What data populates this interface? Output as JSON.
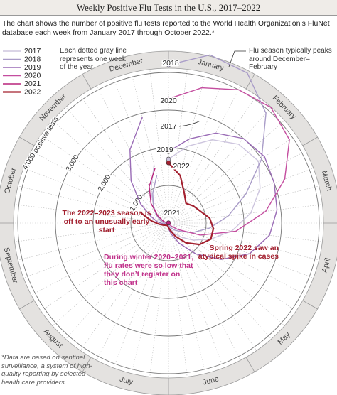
{
  "chart_data": {
    "type": "radial-line",
    "title": "Weekly Positive Flu Tests in the U.S., 2017–2022",
    "subtitle": "The chart shows the number of positive flu tests reported to the World Health Organization’s FluNet database each week from January 2017 through October 2022.*",
    "footnote": "*Data are based on sentinel surveillance, a system of high-quality reporting by selected health care providers.",
    "categories": [
      "January",
      "February",
      "March",
      "April",
      "May",
      "June",
      "July",
      "August",
      "September",
      "October",
      "November",
      "December"
    ],
    "x": [
      1,
      3,
      5,
      7,
      9,
      11,
      13,
      15,
      17,
      19,
      21,
      23,
      25,
      27,
      29,
      31,
      33,
      35,
      37,
      39,
      41,
      43,
      45,
      47,
      49,
      51
    ],
    "xlim": [
      1,
      53
    ],
    "rlim": [
      0,
      4000
    ],
    "rticks": [
      {
        "value": 1000,
        "label": "1,000"
      },
      {
        "value": 2000,
        "label": "2,000"
      },
      {
        "value": 3000,
        "label": "3,000"
      },
      {
        "value": 4000,
        "label": "4,000 positive tests"
      }
    ],
    "series": [
      {
        "name": "2017",
        "color": "#cdc5de",
        "values": [
          1700,
          2100,
          2500,
          2800,
          2900,
          2600,
          2200,
          1700,
          1200,
          800,
          500,
          300,
          150,
          80,
          50,
          40,
          40,
          40,
          50,
          60,
          100,
          200,
          350,
          600,
          1000,
          1600
        ]
      },
      {
        "name": "2018",
        "color": "#a99cc8",
        "values": [
          4200,
          4600,
          4500,
          3900,
          3000,
          2200,
          1600,
          1100,
          700,
          400,
          250,
          150,
          80,
          50,
          40,
          40,
          40,
          50,
          70,
          100,
          150,
          250,
          400,
          600,
          900,
          1300
        ]
      },
      {
        "name": "2019",
        "color": "#9a6cb6",
        "values": [
          1900,
          2300,
          2700,
          3000,
          3100,
          3000,
          2900,
          2700,
          2300,
          1700,
          1100,
          600,
          300,
          150,
          80,
          60,
          60,
          70,
          100,
          150,
          300,
          500,
          900,
          1500,
          2200,
          2900
        ]
      },
      {
        "name": "2020",
        "color": "#c44d9f",
        "values": [
          3300,
          3700,
          4000,
          4100,
          3900,
          3300,
          2600,
          1800,
          900,
          300,
          100,
          30,
          10,
          5,
          5,
          5,
          5,
          5,
          5,
          5,
          5,
          5,
          5,
          5,
          5,
          5
        ]
      },
      {
        "name": "2021",
        "color": "#b8237c",
        "values": [
          5,
          5,
          5,
          5,
          5,
          5,
          5,
          5,
          5,
          5,
          5,
          5,
          5,
          5,
          5,
          5,
          5,
          5,
          10,
          20,
          50,
          150,
          350,
          700,
          1100,
          1500
        ]
      },
      {
        "name": "2022",
        "color": "#a3202f",
        "values": [
          1600,
          1300,
          900,
          700,
          800,
          900,
          1100,
          1200,
          1200,
          1000,
          700,
          400,
          200,
          120,
          80,
          70,
          80,
          100,
          150,
          250,
          450,
          800,
          null,
          null,
          null,
          null
        ]
      }
    ],
    "annotations": {
      "weeks": "Each dotted gray line represents one week of the year",
      "peak": "Flu season typically peaks around December–February",
      "early": "The 2022–2023 season is off to an unusually early start",
      "winter": "During winter 2020–2021, flu rates were so low that they don’t register on this chart",
      "spring": "Spring 2022 saw an atypical spike in cases"
    }
  }
}
